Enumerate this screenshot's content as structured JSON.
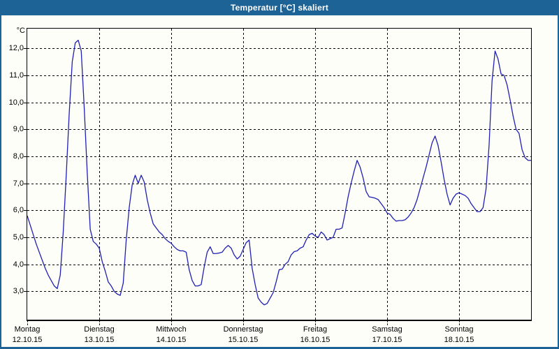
{
  "window": {
    "title": "Temperatur [°C] skaliert"
  },
  "colors": {
    "titlebar": "#1e6396",
    "frame": "#1e6396",
    "title_text": "#ffffff",
    "background": "#fdfef8",
    "line": "#2020b2",
    "grid": "#000000"
  },
  "chart_data": {
    "type": "line",
    "title": "Temperatur [°C] skaliert",
    "unit_label": "°C",
    "grid": "dashed",
    "legend": "none",
    "ylim": [
      1.95,
      12.73
    ],
    "y_tick_labels": [
      "12,0",
      "11,0",
      "10,0",
      "9,0",
      "8,0",
      "7,0",
      "6,0",
      "5,0",
      "4,0",
      "3,0"
    ],
    "y_tick_values": [
      12,
      11,
      10,
      9,
      8,
      7,
      6,
      5,
      4,
      3
    ],
    "x_days": [
      {
        "name": "Montag",
        "date": "12.10.15"
      },
      {
        "name": "Dienstag",
        "date": "13.10.15"
      },
      {
        "name": "Mittwoch",
        "date": "14.10.15"
      },
      {
        "name": "Donnerstag",
        "date": "15.10.15"
      },
      {
        "name": "Freitag",
        "date": "16.10.15"
      },
      {
        "name": "Samstag",
        "date": "17.10.15"
      },
      {
        "name": "Sonntag",
        "date": "18.10.15"
      }
    ],
    "x_unit": "hours",
    "hours_per_point": 1,
    "series": [
      {
        "name": "Temperatur",
        "color": "#2020b2",
        "values": [
          5.8,
          5.45,
          5.1,
          4.75,
          4.45,
          4.15,
          3.85,
          3.6,
          3.4,
          3.2,
          3.1,
          3.6,
          5.2,
          7.3,
          9.6,
          11.5,
          12.2,
          12.3,
          11.9,
          9.8,
          7.4,
          5.3,
          4.85,
          4.75,
          4.6,
          4.1,
          3.75,
          3.35,
          3.2,
          3.0,
          2.9,
          2.85,
          3.3,
          4.9,
          6.1,
          6.95,
          7.3,
          7.0,
          7.3,
          7.05,
          6.4,
          5.9,
          5.5,
          5.35,
          5.2,
          5.1,
          4.95,
          4.85,
          4.78,
          4.65,
          4.55,
          4.5,
          4.5,
          4.45,
          3.8,
          3.4,
          3.2,
          3.2,
          3.25,
          3.9,
          4.45,
          4.65,
          4.4,
          4.4,
          4.42,
          4.45,
          4.6,
          4.7,
          4.6,
          4.35,
          4.2,
          4.3,
          4.55,
          4.8,
          4.9,
          3.85,
          3.25,
          2.75,
          2.6,
          2.5,
          2.55,
          2.75,
          2.95,
          3.35,
          3.8,
          3.82,
          4.0,
          4.1,
          4.35,
          4.47,
          4.5,
          4.6,
          4.65,
          4.9,
          5.1,
          5.15,
          5.05,
          5.0,
          5.2,
          5.1,
          4.9,
          4.95,
          5.0,
          5.3,
          5.3,
          5.35,
          5.9,
          6.5,
          7.0,
          7.45,
          7.85,
          7.6,
          7.2,
          6.7,
          6.5,
          6.48,
          6.45,
          6.4,
          6.25,
          6.1,
          5.9,
          5.85,
          5.7,
          5.6,
          5.62,
          5.62,
          5.65,
          5.75,
          5.9,
          6.1,
          6.4,
          6.8,
          7.2,
          7.6,
          8.05,
          8.5,
          8.75,
          8.4,
          7.8,
          7.15,
          6.6,
          6.2,
          6.45,
          6.6,
          6.65,
          6.6,
          6.55,
          6.45,
          6.25,
          6.1,
          5.95,
          5.95,
          6.1,
          6.8,
          8.4,
          10.8,
          11.9,
          11.6,
          11.05,
          11.0,
          10.65,
          10.1,
          9.5,
          9.0,
          8.85,
          8.25,
          7.95,
          7.85,
          7.85
        ]
      }
    ]
  }
}
